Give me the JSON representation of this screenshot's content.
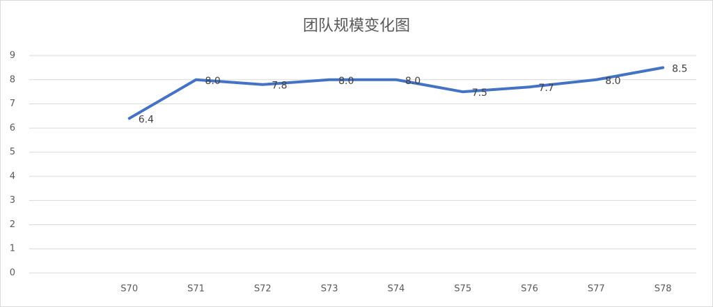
{
  "chart_data": {
    "type": "line",
    "title": "团队规模变化图",
    "categories": [
      null,
      "S70",
      "S71",
      "S72",
      "S73",
      "S74",
      "S75",
      "S76",
      "S77",
      "S78"
    ],
    "series": [
      {
        "color": "#4472c4",
        "values": [
          null,
          6.4,
          8.0,
          7.8,
          8.0,
          8.0,
          7.5,
          7.7,
          8.0,
          8.5
        ],
        "value_labels": [
          null,
          "6.4",
          "8.0",
          "7.8",
          "8.0",
          "8.0",
          "7.5",
          "7.7",
          "8.0",
          "8.5"
        ]
      }
    ],
    "ylim": [
      0,
      9
    ],
    "yticks": [
      0,
      1,
      2,
      3,
      4,
      5,
      6,
      7,
      8,
      9
    ],
    "grid": true
  }
}
